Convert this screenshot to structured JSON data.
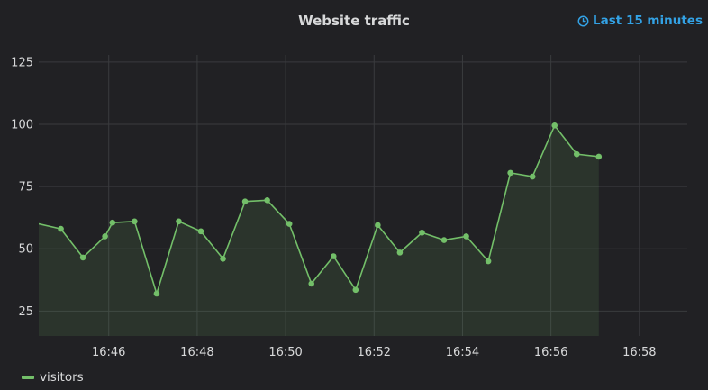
{
  "panel": {
    "title": "Website traffic",
    "time_range_label": "Last 15 minutes",
    "time_range_icon": "clock-icon"
  },
  "colors": {
    "series": "#73bf69",
    "grid": "#3a3b3e",
    "accent": "#33a2e5"
  },
  "chart_data": {
    "type": "line",
    "title": "Website traffic",
    "xlabel": "",
    "ylabel": "",
    "x_ticks": [
      "16:46",
      "16:48",
      "16:50",
      "16:52",
      "16:54",
      "16:56",
      "16:58"
    ],
    "y_ticks": [
      25,
      50,
      75,
      100,
      125
    ],
    "xlim": [
      "16:44:25",
      "16:59:05"
    ],
    "ylim": [
      15,
      130
    ],
    "grid": true,
    "legend_position": "bottom-left",
    "series": [
      {
        "name": "visitors",
        "fill": true,
        "points": [
          {
            "x": "16:44:25",
            "y": 60
          },
          {
            "x": "16:44:55",
            "y": 58
          },
          {
            "x": "16:45:25",
            "y": 46.5
          },
          {
            "x": "16:45:55",
            "y": 55
          },
          {
            "x": "16:46:05",
            "y": 60.5
          },
          {
            "x": "16:46:35",
            "y": 61
          },
          {
            "x": "16:47:05",
            "y": 32
          },
          {
            "x": "16:47:35",
            "y": 61
          },
          {
            "x": "16:48:05",
            "y": 57
          },
          {
            "x": "16:48:35",
            "y": 46
          },
          {
            "x": "16:49:05",
            "y": 69
          },
          {
            "x": "16:49:35",
            "y": 69.5
          },
          {
            "x": "16:50:05",
            "y": 60
          },
          {
            "x": "16:50:35",
            "y": 36
          },
          {
            "x": "16:51:05",
            "y": 47
          },
          {
            "x": "16:51:35",
            "y": 33.5
          },
          {
            "x": "16:52:05",
            "y": 59.5
          },
          {
            "x": "16:52:35",
            "y": 48.5
          },
          {
            "x": "16:53:05",
            "y": 56.5
          },
          {
            "x": "16:53:35",
            "y": 53.5
          },
          {
            "x": "16:54:05",
            "y": 55
          },
          {
            "x": "16:54:35",
            "y": 45
          },
          {
            "x": "16:55:05",
            "y": 80.5
          },
          {
            "x": "16:55:35",
            "y": 79
          },
          {
            "x": "16:56:05",
            "y": 99.5
          },
          {
            "x": "16:56:35",
            "y": 88
          },
          {
            "x": "16:57:05",
            "y": 87
          }
        ]
      }
    ]
  }
}
